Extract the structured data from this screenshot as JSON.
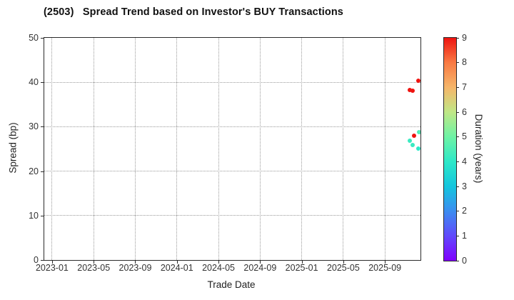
{
  "chart_data": {
    "type": "scatter",
    "title": "(2503)   Spread Trend based on Investor's BUY Transactions",
    "xlabel": "Trade Date",
    "ylabel": "Spread (bp)",
    "ylim": [
      0,
      50
    ],
    "yticks": [
      0,
      10,
      20,
      30,
      40,
      50
    ],
    "xtick_labels": [
      "2023-01",
      "2023-05",
      "2023-09",
      "2024-01",
      "2024-05",
      "2024-09",
      "2025-01",
      "2025-05",
      "2025-09"
    ],
    "x_axis": {
      "epoch": "2023-01",
      "min_month_offset": -0.75,
      "max_month_offset": 35.42
    },
    "grid": true,
    "grid_style": "dotted",
    "legend_position": "none",
    "colorbar": {
      "label": "Duration (years)",
      "min": 0,
      "max": 9,
      "ticks": [
        0,
        1,
        2,
        3,
        4,
        5,
        6,
        7,
        8,
        9
      ],
      "colormap_stops": [
        {
          "value": 0,
          "color": "#7f00ff"
        },
        {
          "value": 1,
          "color": "#6149fb"
        },
        {
          "value": 2,
          "color": "#3c8cf0"
        },
        {
          "value": 3,
          "color": "#14c6de"
        },
        {
          "value": 4,
          "color": "#2de8c8"
        },
        {
          "value": 5,
          "color": "#6ef3a5"
        },
        {
          "value": 6,
          "color": "#c0e786"
        },
        {
          "value": 7,
          "color": "#f6b66a"
        },
        {
          "value": 8,
          "color": "#f97a43"
        },
        {
          "value": 9,
          "color": "#ee1410"
        }
      ]
    },
    "points": [
      {
        "date": "2025-11-13",
        "spread": 38.3,
        "duration": 9.0
      },
      {
        "date": "2025-11-20",
        "spread": 38.1,
        "duration": 9.0
      },
      {
        "date": "2025-12-08",
        "spread": 40.4,
        "duration": 9.0
      },
      {
        "date": "2025-11-26",
        "spread": 27.9,
        "duration": 9.0
      },
      {
        "date": "2025-12-10",
        "spread": 28.8,
        "duration": 4.5
      },
      {
        "date": "2025-11-13",
        "spread": 26.9,
        "duration": 4.2
      },
      {
        "date": "2025-11-21",
        "spread": 25.9,
        "duration": 4.2
      },
      {
        "date": "2025-12-07",
        "spread": 25.1,
        "duration": 4.0
      }
    ]
  }
}
